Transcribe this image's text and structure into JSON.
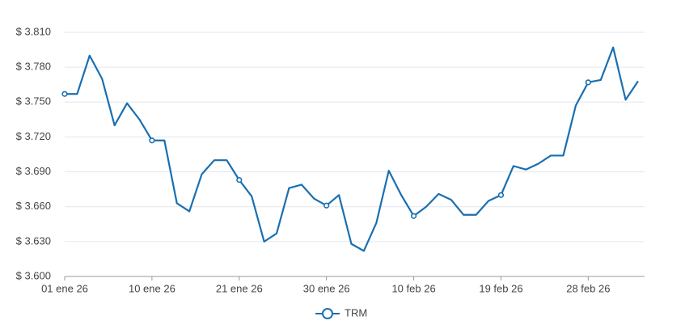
{
  "chart_data": {
    "type": "line",
    "categories": [
      "01 ene 26",
      null,
      null,
      null,
      null,
      null,
      null,
      "10 ene 26",
      null,
      null,
      null,
      null,
      null,
      null,
      "21 ene 26",
      null,
      null,
      null,
      null,
      null,
      null,
      "30 ene 26",
      null,
      null,
      null,
      null,
      null,
      null,
      "10 feb 26",
      null,
      null,
      null,
      null,
      null,
      null,
      "19 feb 26",
      null,
      null,
      null,
      null,
      null,
      null,
      "28 feb 26",
      null,
      null,
      null,
      null
    ],
    "series": [
      {
        "name": "TRM",
        "color": "#1a6fb0",
        "values": [
          3757,
          3757,
          3790,
          3770,
          3730,
          3749,
          3735,
          3717,
          3717,
          3663,
          3656,
          3688,
          3700,
          3700,
          3683,
          3669,
          3630,
          3637,
          3676,
          3679,
          3667,
          3661,
          3670,
          3628,
          3622,
          3646,
          3691,
          3670,
          3652,
          3660,
          3671,
          3666,
          3653,
          3653,
          3665,
          3670,
          3695,
          3692,
          3697,
          3704,
          3704,
          3747,
          3767,
          3769,
          3797,
          3752,
          3768
        ]
      }
    ],
    "ylim": [
      3600,
      3810
    ],
    "yticks": [
      {
        "value": 3600,
        "label": "$ 3.600"
      },
      {
        "value": 3630,
        "label": "$ 3.630"
      },
      {
        "value": 3660,
        "label": "$ 3.660"
      },
      {
        "value": 3690,
        "label": "$ 3.690"
      },
      {
        "value": 3720,
        "label": "$ 3.720"
      },
      {
        "value": 3750,
        "label": "$ 3.750"
      },
      {
        "value": 3780,
        "label": "$ 3.780"
      },
      {
        "value": 3810,
        "label": "$ 3.810"
      }
    ],
    "grid": true,
    "legend": "bottom"
  }
}
